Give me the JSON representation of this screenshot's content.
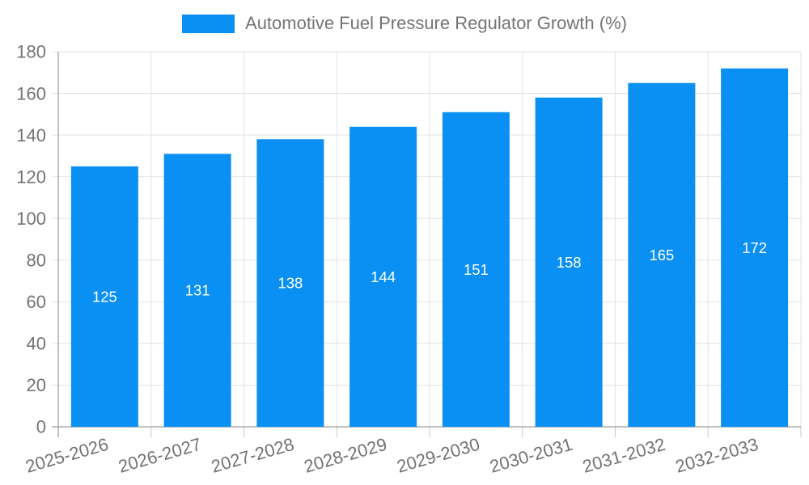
{
  "chart_data": {
    "type": "bar",
    "title": "Automotive Fuel Pressure Regulator Growth (%)",
    "categories": [
      "2025-2026",
      "2026-2027",
      "2027-2028",
      "2028-2029",
      "2029-2030",
      "2030-2031",
      "2031-2032",
      "2032-2033"
    ],
    "values": [
      125,
      131,
      138,
      144,
      151,
      158,
      165,
      172
    ],
    "bar_labels": [
      "125",
      "131",
      "138",
      "144",
      "151",
      "158",
      "165",
      "172"
    ],
    "xlabel": "",
    "ylabel": "",
    "ylim": [
      0,
      180
    ],
    "yticks": [
      0,
      20,
      40,
      60,
      80,
      100,
      120,
      140,
      160,
      180
    ],
    "grid": true,
    "legend_position": "top-center",
    "x_tick_rotation_deg": -16,
    "colors": {
      "bar": "#0a90f2",
      "bar_label": "#ffffff",
      "grid": "#e2e2e2",
      "axis": "#adadad",
      "tick_label": "#737373",
      "legend_text": "#737373",
      "background": "#ffffff"
    }
  }
}
